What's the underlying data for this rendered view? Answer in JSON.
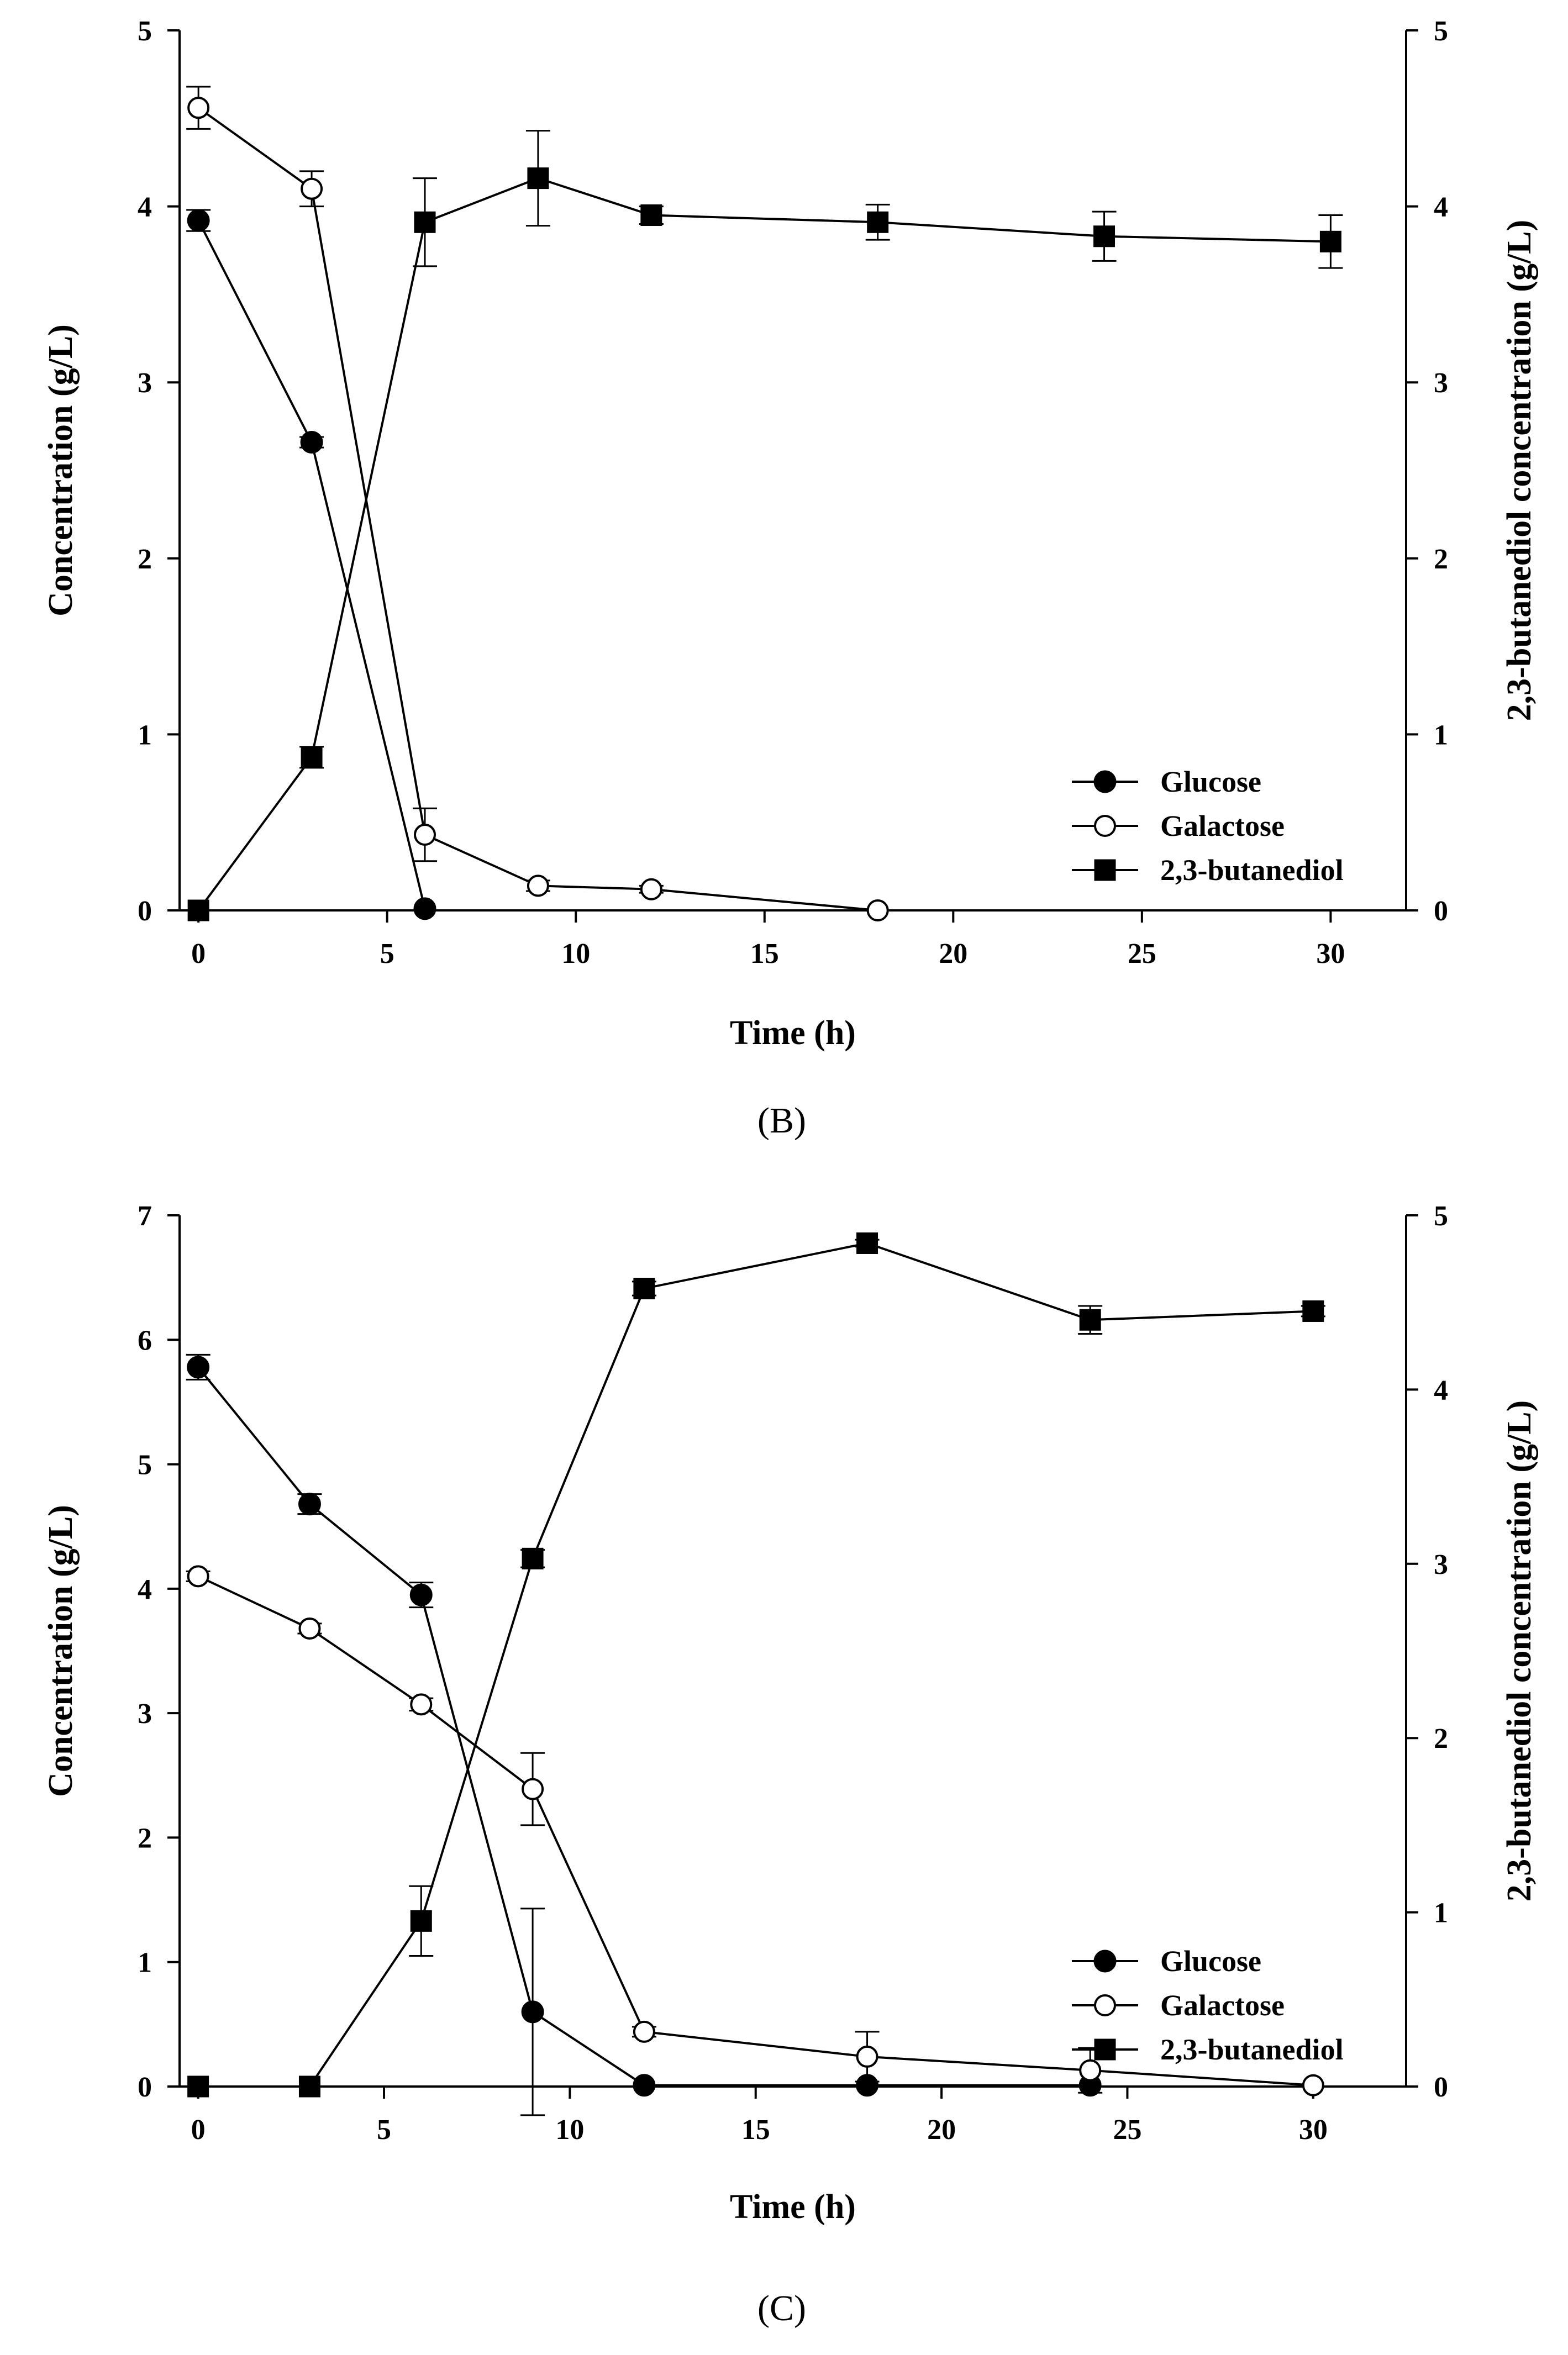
{
  "chart_data": [
    {
      "type": "line",
      "panel_label": "(B)",
      "xlabel": "Time (h)",
      "ylabel": "Concentration (g/L)",
      "y2label": "2,3-butanediol concentration (g/L)",
      "xlim": [
        -0.5,
        32
      ],
      "xticks": [
        0,
        5,
        10,
        15,
        20,
        25,
        30
      ],
      "ylim": [
        0,
        5
      ],
      "yticks": [
        0,
        1,
        2,
        3,
        4,
        5
      ],
      "y2lim": [
        0,
        5
      ],
      "y2ticks": [
        0,
        1,
        2,
        3,
        4,
        5
      ],
      "legend_position": "bottom-right",
      "series": [
        {
          "name": "Glucose",
          "marker": "filled-circle",
          "axis": "left",
          "x": [
            0,
            3,
            6
          ],
          "y": [
            3.92,
            2.66,
            0.01
          ],
          "err": [
            0.06,
            0.03,
            0.0
          ]
        },
        {
          "name": "Galactose",
          "marker": "open-circle",
          "axis": "left",
          "x": [
            0,
            3,
            6,
            9,
            12,
            18
          ],
          "y": [
            4.56,
            4.1,
            0.43,
            0.14,
            0.12,
            0.0
          ],
          "err": [
            0.12,
            0.1,
            0.15,
            0.03,
            0.02,
            0.0
          ]
        },
        {
          "name": "2,3-butanediol",
          "marker": "filled-square",
          "axis": "right",
          "x": [
            0,
            3,
            6,
            9,
            12,
            18,
            24,
            30
          ],
          "y": [
            0.0,
            0.87,
            3.91,
            4.16,
            3.95,
            3.91,
            3.83,
            3.8
          ],
          "err": [
            0.0,
            0.06,
            0.25,
            0.27,
            0.05,
            0.1,
            0.14,
            0.15
          ]
        }
      ]
    },
    {
      "type": "line",
      "panel_label": "(C)",
      "xlabel": "Time (h)",
      "ylabel": "Concentration (g/L)",
      "y2label": "2,3-butanediol concentration (g/L)",
      "xlim": [
        -0.5,
        32.5
      ],
      "xticks": [
        0,
        5,
        10,
        15,
        20,
        25,
        30
      ],
      "ylim": [
        0,
        7
      ],
      "yticks": [
        0,
        1,
        2,
        3,
        4,
        5,
        6,
        7
      ],
      "y2lim": [
        0,
        5
      ],
      "y2ticks": [
        0,
        1,
        2,
        3,
        4,
        5
      ],
      "legend_position": "bottom-right",
      "series": [
        {
          "name": "Glucose",
          "marker": "filled-circle",
          "axis": "left",
          "x": [
            0,
            3,
            6,
            9,
            12,
            18,
            24
          ],
          "y": [
            5.78,
            4.68,
            3.95,
            0.6,
            0.01,
            0.01,
            0.01
          ],
          "err": [
            0.1,
            0.08,
            0.1,
            0.83,
            0.0,
            0.0,
            0.0
          ]
        },
        {
          "name": "Galactose",
          "marker": "open-circle",
          "axis": "left",
          "x": [
            0,
            3,
            6,
            9,
            12,
            18,
            24,
            30
          ],
          "y": [
            4.1,
            3.68,
            3.07,
            2.39,
            0.44,
            0.24,
            0.13,
            0.01
          ],
          "err": [
            0.04,
            0.04,
            0.05,
            0.29,
            0.04,
            0.2,
            0.18,
            0.0
          ]
        },
        {
          "name": "2,3-butanediol",
          "marker": "filled-square",
          "axis": "right",
          "x": [
            0,
            3,
            6,
            9,
            12,
            18,
            24,
            30
          ],
          "y": [
            0.0,
            0.0,
            0.95,
            3.03,
            4.58,
            4.84,
            4.4,
            4.45
          ],
          "err": [
            0.0,
            0.0,
            0.2,
            0.05,
            0.04,
            0.02,
            0.08,
            0.03
          ]
        }
      ]
    }
  ]
}
